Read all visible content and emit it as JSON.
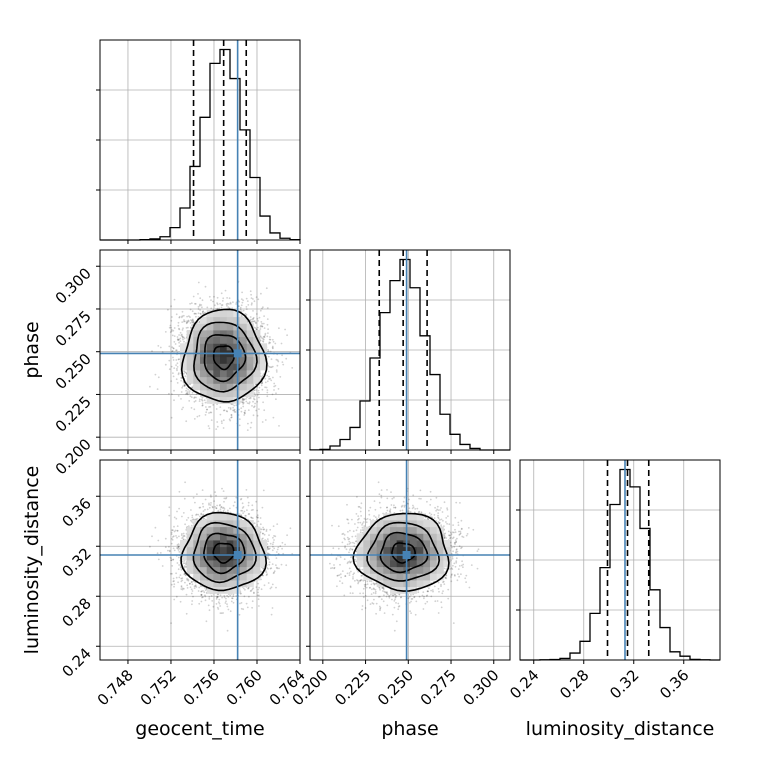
{
  "chart_data": {
    "type": "corner",
    "params": [
      {
        "name": "geocent_time",
        "label": "geocent_time",
        "truth": 0.7582,
        "mean": 0.7569,
        "sd": 0.0019,
        "range": [
          0.7454,
          0.764
        ],
        "ticks": [
          0.748,
          0.752,
          0.756,
          0.76,
          0.764
        ],
        "tick_labels": [
          "0.748",
          "0.752",
          "0.756",
          "0.760",
          "0.764"
        ],
        "quantiles": [
          0.7541,
          0.7569,
          0.759
        ]
      },
      {
        "name": "phase",
        "label": "phase",
        "truth": 0.249,
        "mean": 0.247,
        "sd": 0.0135,
        "range": [
          0.1925,
          0.3095
        ],
        "ticks": [
          0.2,
          0.225,
          0.25,
          0.275,
          0.3
        ],
        "tick_labels": [
          "0.200",
          "0.225",
          "0.250",
          "0.275",
          "0.300"
        ],
        "quantiles": [
          0.233,
          0.247,
          0.261
        ]
      },
      {
        "name": "luminosity_distance",
        "label": "luminosity_distance",
        "truth": 0.313,
        "mean": 0.315,
        "sd": 0.0155,
        "range": [
          0.229,
          0.389
        ],
        "ticks": [
          0.24,
          0.28,
          0.32,
          0.36
        ],
        "tick_labels": [
          "0.24",
          "0.28",
          "0.32",
          "0.36"
        ],
        "quantiles": [
          0.299,
          0.315,
          0.332
        ]
      }
    ],
    "pair_correlation": {
      "geocent_time|phase": -0.05,
      "geocent_time|luminosity_distance": 0.0,
      "phase|luminosity_distance": 0.0
    },
    "contour_levels": [
      0.5,
      1.0,
      1.5,
      2.0
    ],
    "truth_color": "#4682b4",
    "grid": true
  }
}
